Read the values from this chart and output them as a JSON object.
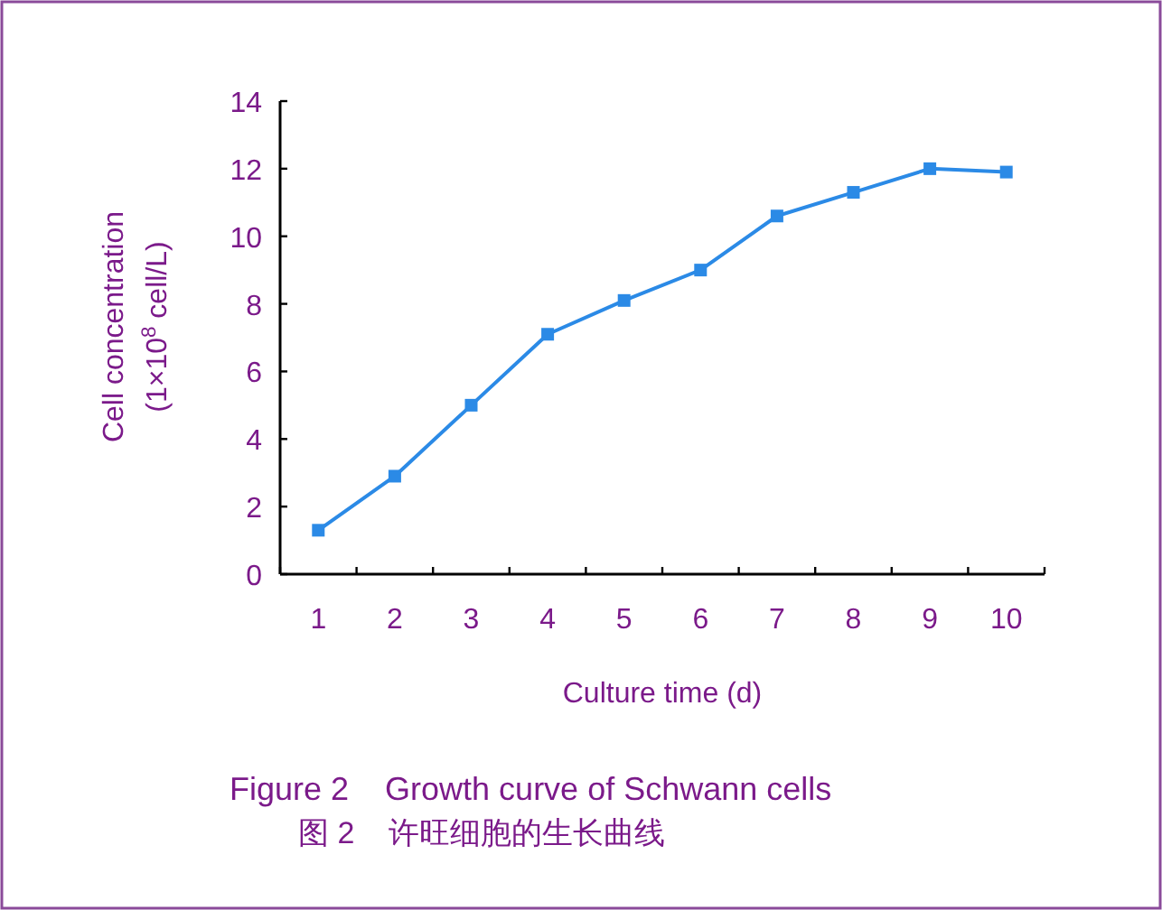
{
  "chart_data": {
    "type": "line",
    "title": "Figure 2    Growth curve of Schwann cells",
    "subtitle": "图 2    许旺细胞的生长曲线",
    "xlabel": "Culture time (d)",
    "ylabel": "Cell concentration\n(1×10$^{8}$ cell/L)",
    "categories": [
      "1",
      "2",
      "3",
      "4",
      "5",
      "6",
      "7",
      "8",
      "9",
      "10"
    ],
    "series": [
      {
        "color": "#2b8ae6",
        "values": [
          1.3,
          2.9,
          5.0,
          7.1,
          8.1,
          9.0,
          10.6,
          11.3,
          12.0,
          11.9
        ]
      }
    ],
    "ylim": [
      0,
      14
    ],
    "yticks": [
      0,
      2,
      4,
      6,
      8,
      10,
      12,
      14
    ],
    "marker": "square",
    "line_style": "solid"
  }
}
